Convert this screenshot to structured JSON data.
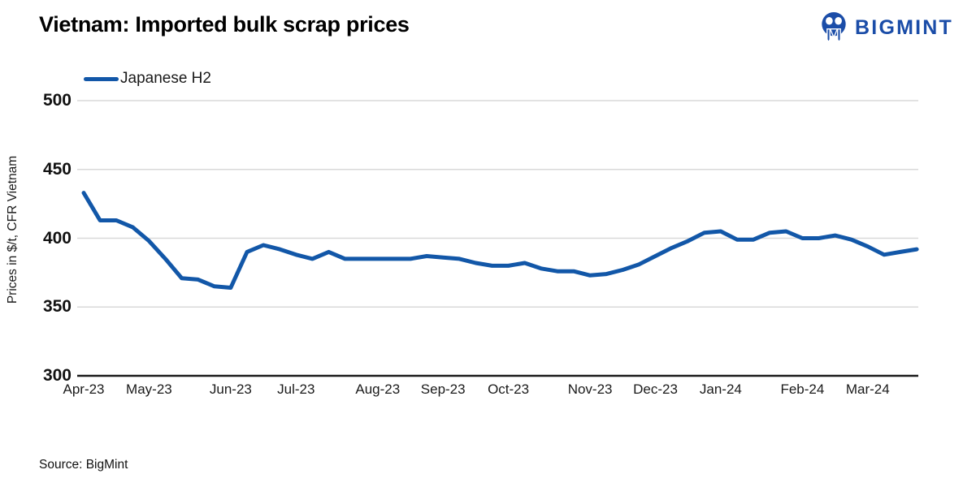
{
  "title": "Vietnam: Imported bulk scrap prices",
  "logo": {
    "text": "BIGMINT",
    "color": "#1b4da8",
    "icon": "bigmint-walrus-icon"
  },
  "legend": {
    "label": "Japanese H2",
    "color": "#1257a8"
  },
  "source": "Source: BigMint",
  "chart_data": {
    "type": "line",
    "title": "Vietnam: Imported bulk scrap prices",
    "ylabel": "Prices in $/t, CFR Vietnam",
    "xlabel": "",
    "ylim": [
      300,
      500
    ],
    "yticks": [
      300,
      350,
      400,
      450,
      500
    ],
    "grid": "horizontal",
    "legend_position": "top-left",
    "x_unit": "weekly observations, Apr-23 to Mar-24",
    "series": [
      {
        "name": "Japanese H2",
        "color": "#1257a8",
        "values": [
          433,
          413,
          413,
          408,
          398,
          385,
          371,
          370,
          365,
          364,
          390,
          395,
          392,
          388,
          385,
          390,
          385,
          385,
          385,
          385,
          385,
          387,
          386,
          385,
          382,
          380,
          380,
          382,
          378,
          376,
          376,
          373,
          374,
          377,
          381,
          387,
          393,
          398,
          404,
          405,
          399,
          399,
          404,
          405,
          400,
          400,
          402,
          399,
          394,
          388,
          390,
          392
        ]
      }
    ],
    "x_ticks": [
      {
        "label": "Apr-23",
        "week": 0
      },
      {
        "label": "May-23",
        "week": 4
      },
      {
        "label": "Jun-23",
        "week": 9
      },
      {
        "label": "Jul-23",
        "week": 13
      },
      {
        "label": "Aug-23",
        "week": 18
      },
      {
        "label": "Sep-23",
        "week": 22
      },
      {
        "label": "Oct-23",
        "week": 26
      },
      {
        "label": "Nov-23",
        "week": 31
      },
      {
        "label": "Dec-23",
        "week": 35
      },
      {
        "label": "Jan-24",
        "week": 39
      },
      {
        "label": "Feb-24",
        "week": 44
      },
      {
        "label": "Mar-24",
        "week": 48
      }
    ]
  }
}
